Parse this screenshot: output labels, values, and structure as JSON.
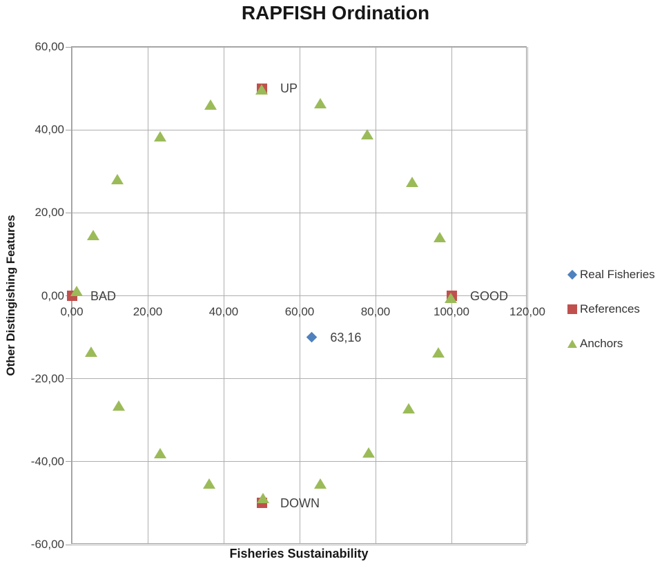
{
  "chart_data": {
    "type": "scatter",
    "title": "RAPFISH Ordination",
    "xlabel": "Fisheries Sustainability",
    "ylabel": "Other Distingishing Features",
    "xlim": [
      0,
      120
    ],
    "ylim": [
      -60,
      60
    ],
    "xticks": [
      0,
      20,
      40,
      60,
      80,
      100,
      120
    ],
    "xtick_labels": [
      "0,00",
      "20,00",
      "40,00",
      "60,00",
      "80,00",
      "100,00",
      "120,00"
    ],
    "yticks": [
      60,
      40,
      20,
      0,
      -20,
      -40,
      -60
    ],
    "ytick_labels": [
      "60,00",
      "40,00",
      "20,00",
      "0,00",
      "-20,00",
      "-40,00",
      "-60,00"
    ],
    "grid": true,
    "grid_color": "#aeaeae",
    "legend_position": "right",
    "series": [
      {
        "name": "Real Fisheries",
        "marker": "diamond",
        "color": "#4F81BD",
        "points": [
          {
            "x": 63.16,
            "y": -10.0,
            "label": "63,16"
          }
        ]
      },
      {
        "name": "References",
        "marker": "square",
        "color": "#C0504D",
        "points": [
          {
            "x": 50,
            "y": 50,
            "label": "UP"
          },
          {
            "x": 0,
            "y": 0,
            "label": "BAD"
          },
          {
            "x": 100,
            "y": 0,
            "label": "GOOD"
          },
          {
            "x": 50,
            "y": -50,
            "label": "DOWN"
          }
        ]
      },
      {
        "name": "Anchors",
        "marker": "triangle",
        "color": "#9BBB59",
        "points": [
          {
            "x": 1.3,
            "y": 1.0
          },
          {
            "x": 5.6,
            "y": 14.6
          },
          {
            "x": 12.0,
            "y": 28.0
          },
          {
            "x": 23.3,
            "y": 38.4
          },
          {
            "x": 36.6,
            "y": 46.0
          },
          {
            "x": 50.0,
            "y": 49.6
          },
          {
            "x": 65.4,
            "y": 46.4
          },
          {
            "x": 77.9,
            "y": 38.8
          },
          {
            "x": 89.7,
            "y": 27.3
          },
          {
            "x": 96.9,
            "y": 14.0
          },
          {
            "x": 99.8,
            "y": -0.5
          },
          {
            "x": 96.5,
            "y": -13.8
          },
          {
            "x": 88.8,
            "y": -27.2
          },
          {
            "x": 78.1,
            "y": -37.8
          },
          {
            "x": 65.5,
            "y": -45.4
          },
          {
            "x": 50.3,
            "y": -48.9
          },
          {
            "x": 36.2,
            "y": -45.3
          },
          {
            "x": 23.2,
            "y": -38.0
          },
          {
            "x": 12.4,
            "y": -26.6
          },
          {
            "x": 5.1,
            "y": -13.5
          }
        ]
      }
    ]
  }
}
